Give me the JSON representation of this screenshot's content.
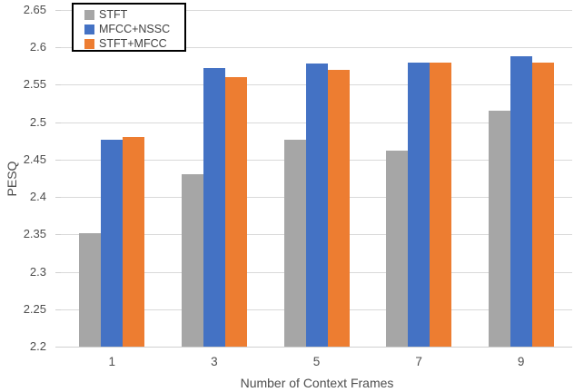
{
  "chart_data": {
    "type": "bar",
    "title": "",
    "xlabel": "Number of Context Frames",
    "ylabel": "PESQ",
    "categories": [
      "1",
      "3",
      "5",
      "7",
      "9"
    ],
    "series": [
      {
        "name": "STFT",
        "color": "#a6a6a6",
        "values": [
          2.352,
          2.43,
          2.476,
          2.462,
          2.515
        ]
      },
      {
        "name": "MFCC+NSSC",
        "color": "#4472c4",
        "values": [
          2.476,
          2.572,
          2.578,
          2.58,
          2.588
        ]
      },
      {
        "name": "STFT+MFCC",
        "color": "#ed7d31",
        "values": [
          2.48,
          2.56,
          2.57,
          2.58,
          2.58
        ]
      }
    ],
    "ylim": [
      2.2,
      2.65
    ],
    "ytick_step": 0.05,
    "ytick_labels": [
      "2.2",
      "2.25",
      "2.3",
      "2.35",
      "2.4",
      "2.45",
      "2.5",
      "2.55",
      "2.6",
      "2.65"
    ],
    "grid": true,
    "legend_position": "top-left",
    "gridline_color": "#d9d9d9",
    "background_color": "#ffffff"
  }
}
